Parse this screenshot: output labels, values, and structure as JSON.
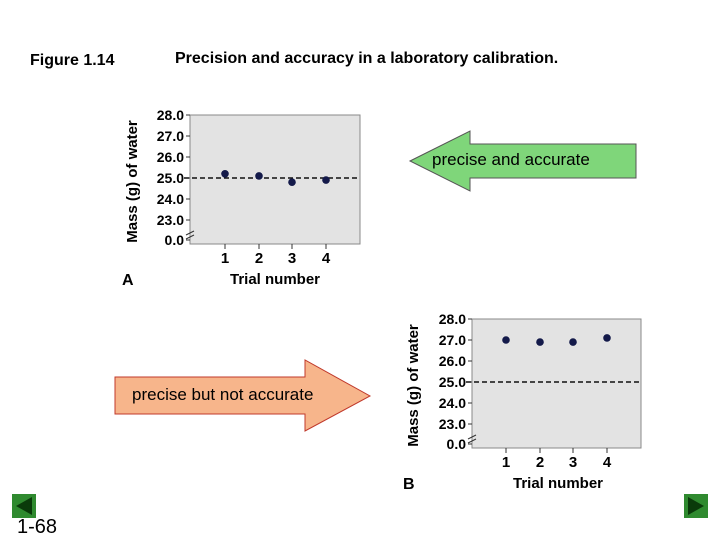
{
  "figure_label": "Figure 1.14",
  "caption": "Precision and accuracy in a laboratory calibration.",
  "arrows": {
    "a_label": "precise and accurate",
    "b_label": "precise but not accurate"
  },
  "page_number": "1-68",
  "colors": {
    "plot_bg": "#e3e3e3",
    "point": "#141a4a",
    "arrow_green": "#7fd67a",
    "arrow_orange": "#f7b58b",
    "nav_green": "#1a6a1a"
  },
  "icons": {
    "prev": "prev-arrow-icon",
    "next": "next-arrow-icon"
  },
  "chart_data": [
    {
      "type": "scatter",
      "panel_label": "A",
      "xlabel": "Trial number",
      "ylabel": "Mass (g) of water",
      "x": [
        1,
        2,
        3,
        4
      ],
      "values": [
        25.2,
        25.1,
        24.8,
        24.9
      ],
      "y_tick_labels": [
        "0.0",
        "23.0",
        "24.0",
        "25.0",
        "26.0",
        "27.0",
        "28.0"
      ],
      "y_ticks": [
        23.0,
        24.0,
        25.0,
        26.0,
        27.0,
        28.0
      ],
      "x_tick_labels": [
        "1",
        "2",
        "3",
        "4"
      ],
      "reference_line": 25.0,
      "ylim": [
        22.0,
        28.0
      ],
      "axis_break": true,
      "grid": false
    },
    {
      "type": "scatter",
      "panel_label": "B",
      "xlabel": "Trial number",
      "ylabel": "Mass (g) of water",
      "x": [
        1,
        2,
        3,
        4
      ],
      "values": [
        27.0,
        26.9,
        26.9,
        27.1
      ],
      "y_tick_labels": [
        "0.0",
        "23.0",
        "24.0",
        "25.0",
        "26.0",
        "27.0",
        "28.0"
      ],
      "y_ticks": [
        23.0,
        24.0,
        25.0,
        26.0,
        27.0,
        28.0
      ],
      "x_tick_labels": [
        "1",
        "2",
        "3",
        "4"
      ],
      "reference_line": 25.0,
      "ylim": [
        22.0,
        28.0
      ],
      "axis_break": true,
      "grid": false
    }
  ]
}
